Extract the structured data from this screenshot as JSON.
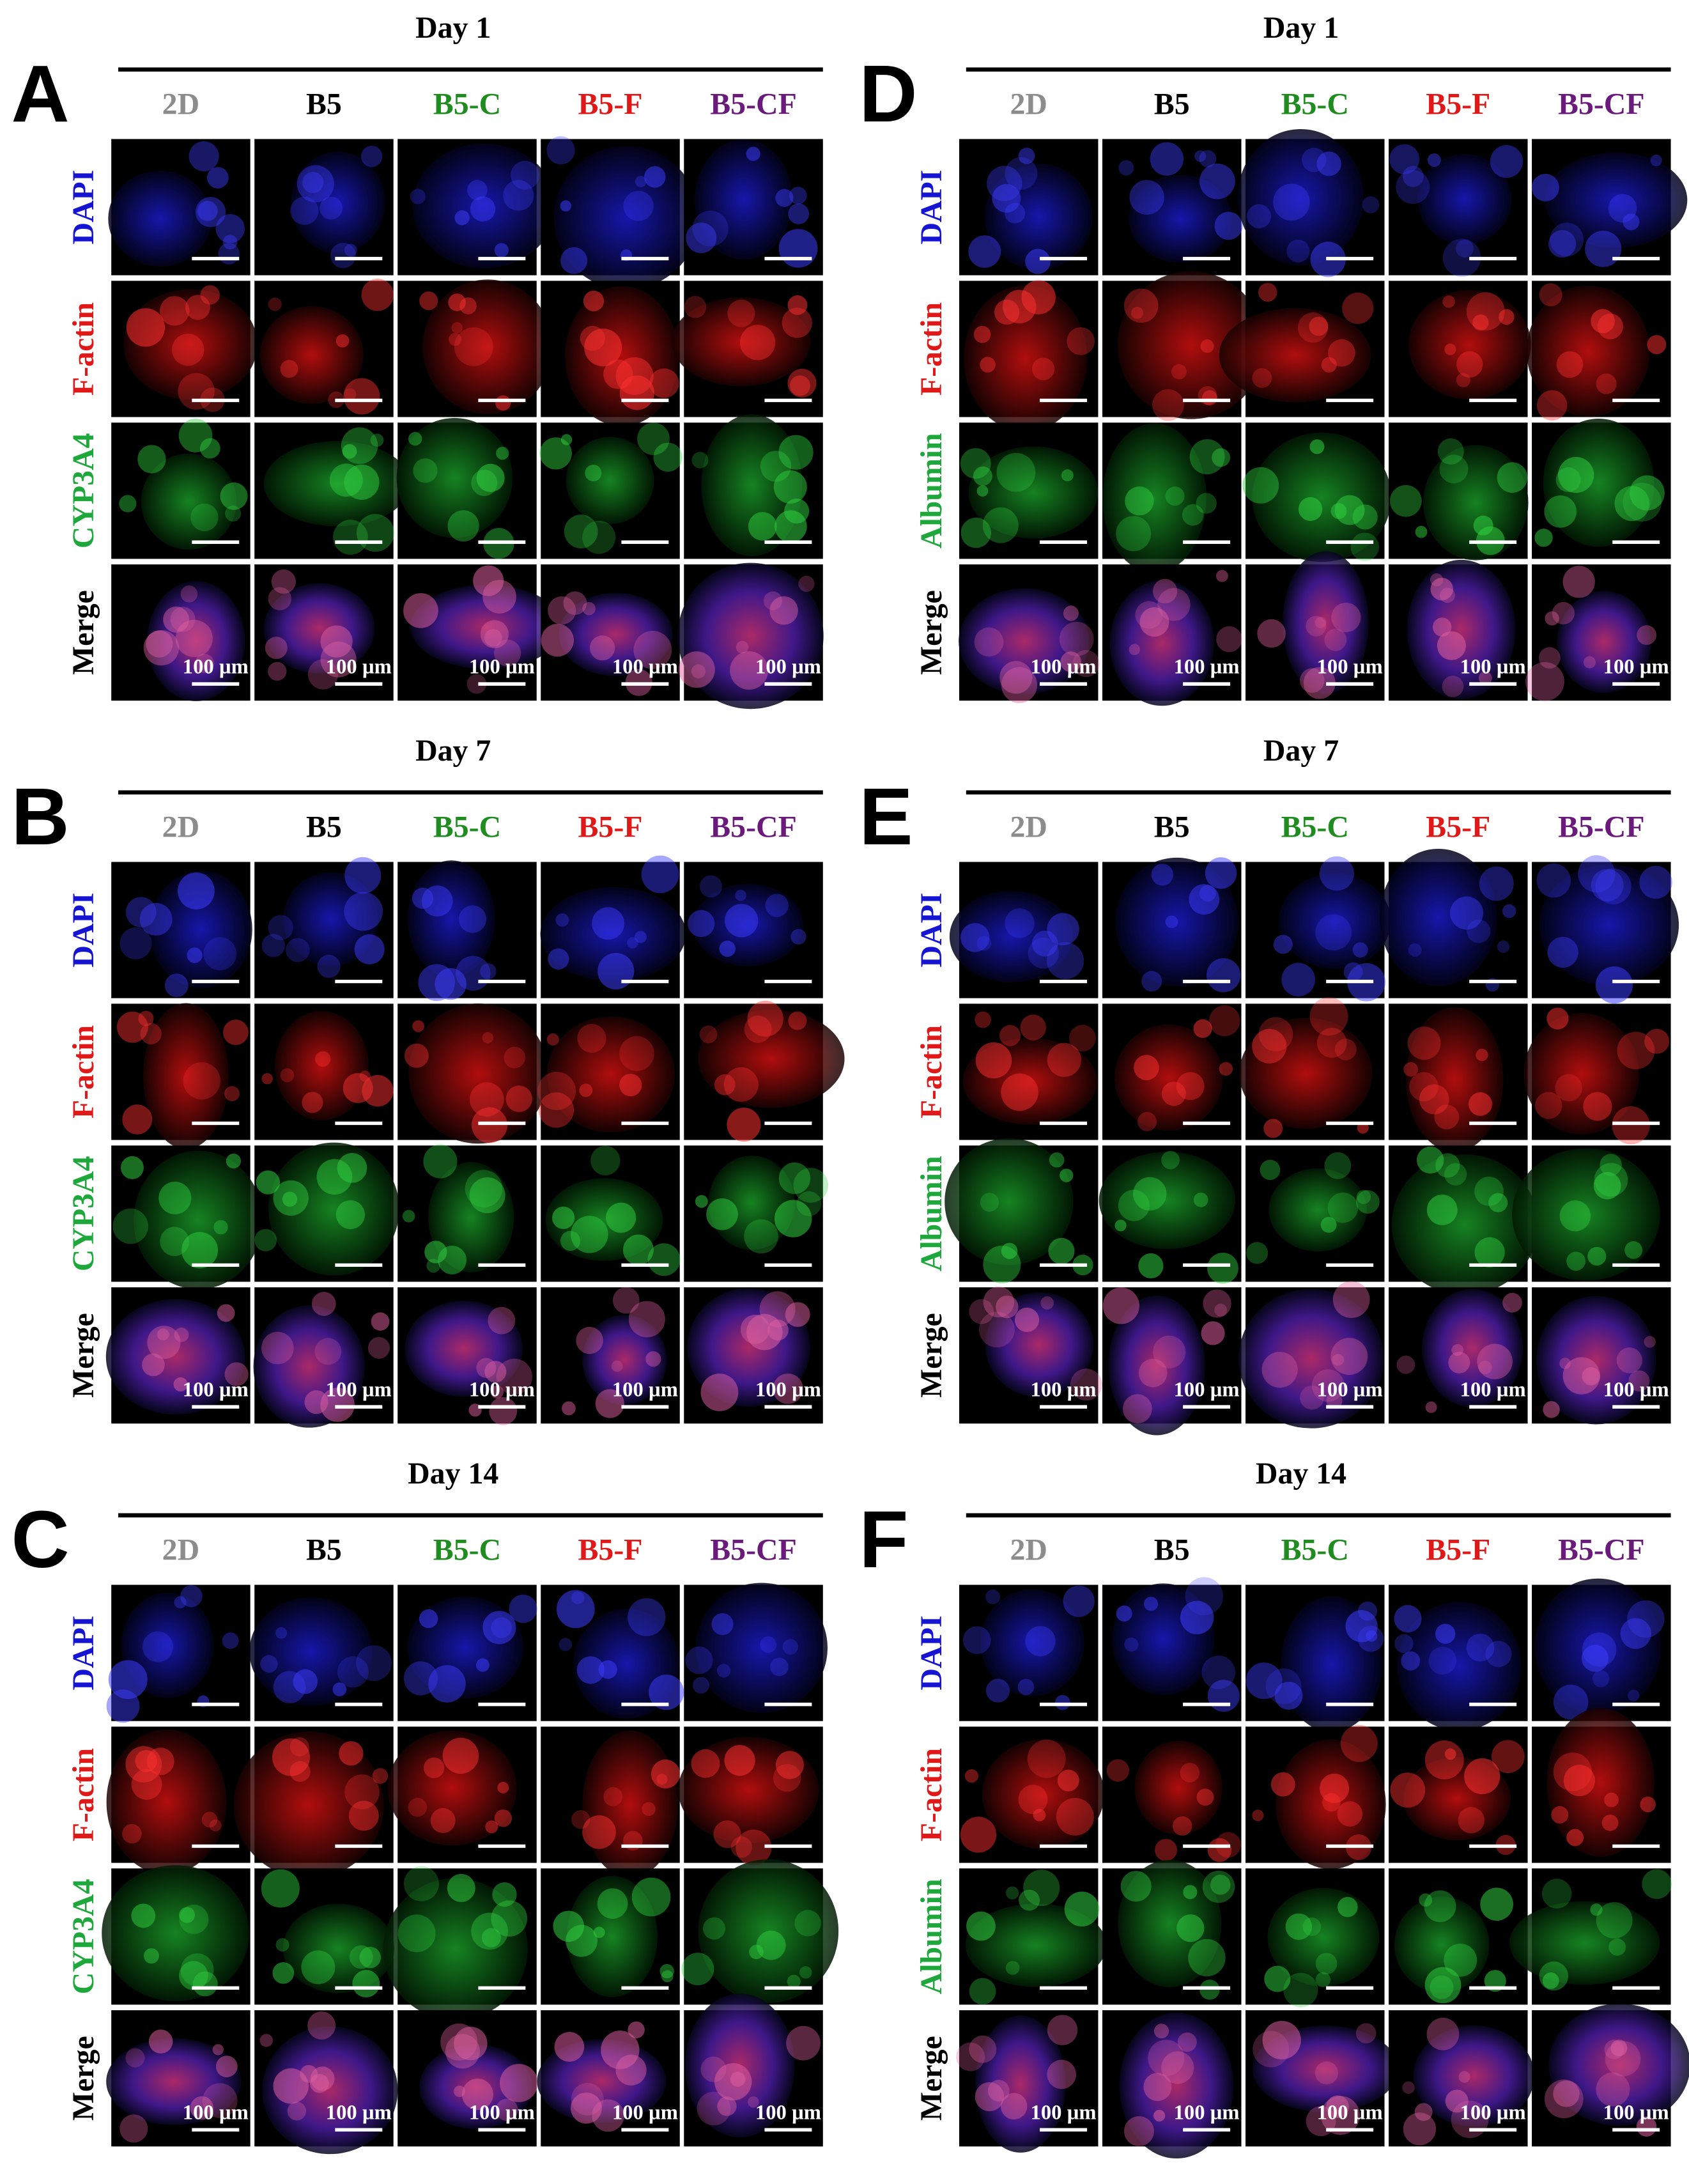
{
  "panels": [
    {
      "letter": "A",
      "day": "Day 1",
      "columns": [
        "2D",
        "B5",
        "B5-C",
        "B5-F",
        "B5-CF"
      ],
      "rows": [
        "DAPI",
        "F-actin",
        "CYP3A4",
        "Merge"
      ],
      "scale_label": "100 µm"
    },
    {
      "letter": "B",
      "day": "Day 7",
      "columns": [
        "2D",
        "B5",
        "B5-C",
        "B5-F",
        "B5-CF"
      ],
      "rows": [
        "DAPI",
        "F-actin",
        "CYP3A4",
        "Merge"
      ],
      "scale_label": "100 µm"
    },
    {
      "letter": "C",
      "day": "Day 14",
      "columns": [
        "2D",
        "B5",
        "B5-C",
        "B5-F",
        "B5-CF"
      ],
      "rows": [
        "DAPI",
        "F-actin",
        "CYP3A4",
        "Merge"
      ],
      "scale_label": "100 µm"
    },
    {
      "letter": "D",
      "day": "Day 1",
      "columns": [
        "2D",
        "B5",
        "B5-C",
        "B5-F",
        "B5-CF"
      ],
      "rows": [
        "DAPI",
        "F-actin",
        "Albumin",
        "Merge"
      ],
      "scale_label": "100 µm"
    },
    {
      "letter": "E",
      "day": "Day 7",
      "columns": [
        "2D",
        "B5",
        "B5-C",
        "B5-F",
        "B5-CF"
      ],
      "rows": [
        "DAPI",
        "F-actin",
        "Albumin",
        "Merge"
      ],
      "scale_label": "100 µm"
    },
    {
      "letter": "F",
      "day": "Day 14",
      "columns": [
        "2D",
        "B5",
        "B5-C",
        "B5-F",
        "B5-CF"
      ],
      "rows": [
        "DAPI",
        "F-actin",
        "Albumin",
        "Merge"
      ],
      "scale_label": "100 µm"
    }
  ]
}
